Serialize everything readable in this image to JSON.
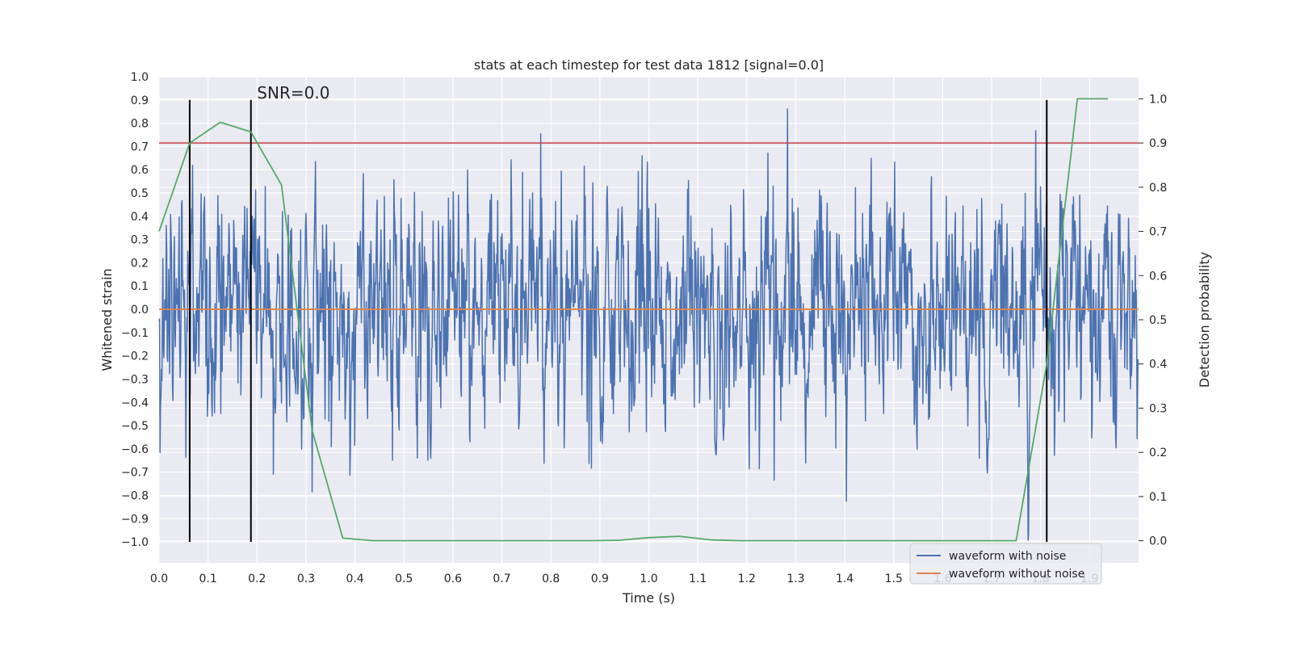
{
  "chart_data": {
    "type": "line",
    "title": "stats at each timestep for test data 1812 [signal=0.0]",
    "xlabel": "Time (s)",
    "ylabel": "Whitened strain",
    "y2label": "Detection probability",
    "xlim": [
      0.0,
      2.0
    ],
    "ylim": [
      -1.09,
      1.0
    ],
    "y2lim": [
      -0.05,
      1.05
    ],
    "x_ticks": [
      0.0,
      0.1,
      0.2,
      0.3,
      0.4,
      0.5,
      0.6,
      0.7,
      0.8,
      0.9,
      1.0,
      1.1,
      1.2,
      1.3,
      1.4,
      1.5,
      1.6,
      1.7,
      1.8,
      1.9
    ],
    "x_tick_labels": [
      "0.0",
      "0.1",
      "0.2",
      "0.3",
      "0.4",
      "0.5",
      "0.6",
      "0.7",
      "0.8",
      "0.9",
      "1.0",
      "1.1",
      "1.2",
      "1.3",
      "1.4",
      "1.5",
      "1.6",
      "1.7",
      "1.8",
      "1.9"
    ],
    "y_ticks": [
      1.0,
      0.9,
      0.8,
      0.7,
      0.6,
      0.5,
      0.4,
      0.3,
      0.2,
      0.1,
      0.0,
      -0.1,
      -0.2,
      -0.3,
      -0.4,
      -0.5,
      -0.6,
      -0.7,
      -0.8,
      -0.9,
      -1.0
    ],
    "y_tick_labels": [
      "1.0",
      "0.9",
      "0.8",
      "0.7",
      "0.6",
      "0.5",
      "0.4",
      "0.3",
      "0.2",
      "0.1",
      "0.0",
      "−0.1",
      "−0.2",
      "−0.3",
      "−0.4",
      "−0.5",
      "−0.6",
      "−0.7",
      "−0.8",
      "−0.9",
      "−1.0"
    ],
    "y2_ticks": [
      1.0,
      0.9,
      0.8,
      0.7,
      0.6,
      0.5,
      0.4,
      0.3,
      0.2,
      0.1,
      0.0
    ],
    "y2_tick_labels": [
      "1.0",
      "0.9",
      "0.8",
      "0.7",
      "0.6",
      "0.5",
      "0.4",
      "0.3",
      "0.2",
      "0.1",
      "0.0"
    ],
    "series": [
      {
        "name": "waveform with noise",
        "color": "#4c72b0",
        "axis": "left",
        "kind": "noise",
        "samples": 2048,
        "x_end": 1.999,
        "amplitude_std": 0.3,
        "min": -1.0,
        "max": 0.9
      },
      {
        "name": "waveform without noise",
        "color": "#dd8452",
        "axis": "left",
        "x": [
          0.0,
          1.999
        ],
        "y": [
          0.0,
          0.0
        ]
      },
      {
        "name": "detection probability",
        "color": "#55a868",
        "axis": "right",
        "x": [
          0.0,
          0.0625,
          0.125,
          0.1875,
          0.25,
          0.3125,
          0.375,
          0.4375,
          0.5,
          0.5625,
          0.625,
          0.6875,
          0.75,
          0.8125,
          0.875,
          0.9375,
          1.0,
          1.0625,
          1.125,
          1.1875,
          1.25,
          1.3125,
          1.375,
          1.4375,
          1.5,
          1.5625,
          1.625,
          1.6875,
          1.75,
          1.8125,
          1.875,
          1.9375
        ],
        "y": [
          0.7,
          0.9,
          0.947,
          0.925,
          0.805,
          0.25,
          0.006,
          0.0,
          0.0,
          0.0,
          0.0,
          0.0,
          0.0,
          0.0,
          0.0,
          0.001,
          0.007,
          0.01,
          0.002,
          0.0,
          0.0,
          0.0,
          0.0,
          0.0,
          0.0,
          0.0,
          0.0,
          0.0,
          0.0,
          0.4,
          1.0,
          1.0
        ]
      }
    ],
    "threshold": {
      "axis": "right",
      "value": 0.9,
      "color": "#c44e52"
    },
    "vlines": [
      0.0625,
      0.1875,
      1.8125
    ],
    "vline_range": [
      -1.0,
      0.9
    ],
    "annotation": {
      "text": "SNR=0.0",
      "x": 0.2,
      "y": 0.9
    },
    "legend": {
      "placement": "lower-right",
      "entries": [
        "waveform with noise",
        "waveform without noise"
      ]
    },
    "grid": true,
    "style": {
      "background": "#eaeaf2",
      "grid_color": "#ffffff"
    }
  }
}
